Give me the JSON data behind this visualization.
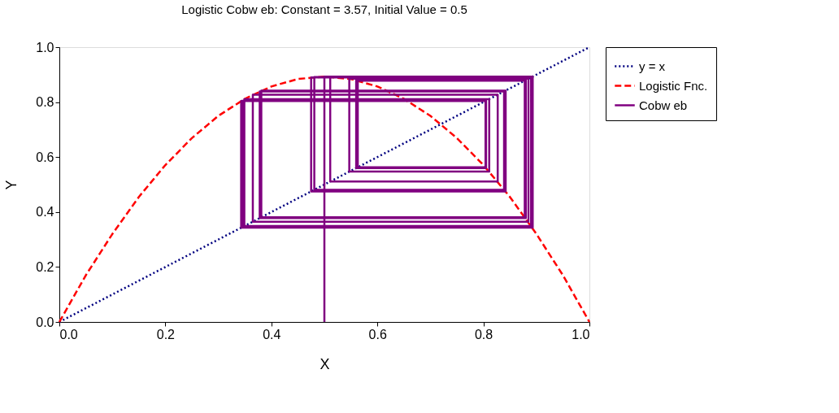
{
  "chart_data": {
    "type": "line",
    "title": "Logistic Cobw eb: Constant = 3.57, Initial Value = 0.5",
    "xlabel": "X",
    "ylabel": "Y",
    "xlim": [
      0,
      1
    ],
    "ylim": [
      0,
      1
    ],
    "xticks": [
      {
        "value": 0,
        "label": "0.0"
      },
      {
        "value": 0.2,
        "label": "0.2"
      },
      {
        "value": 0.4,
        "label": "0.4"
      },
      {
        "value": 0.6,
        "label": "0.6"
      },
      {
        "value": 0.8,
        "label": "0.8"
      },
      {
        "value": 1,
        "label": "1.0"
      }
    ],
    "yticks": [
      {
        "value": 0,
        "label": "0.0"
      },
      {
        "value": 0.2,
        "label": "0.2"
      },
      {
        "value": 0.4,
        "label": "0.4"
      },
      {
        "value": 0.6,
        "label": "0.6"
      },
      {
        "value": 0.8,
        "label": "0.8"
      },
      {
        "value": 1,
        "label": "1.0"
      }
    ],
    "grid": false,
    "legend": "right",
    "marker": "none",
    "series": [
      {
        "name": "y = x",
        "color": "#000080",
        "line_style": "dotted",
        "x": [
          0,
          1
        ],
        "values": [
          0,
          1
        ]
      },
      {
        "name": "Logistic Fnc.",
        "color": "#ff0000",
        "line_style": "dashed",
        "x": [
          0,
          0.05,
          0.1,
          0.15,
          0.2,
          0.25,
          0.3,
          0.35,
          0.4,
          0.45,
          0.5,
          0.55,
          0.6,
          0.65,
          0.7,
          0.75,
          0.8,
          0.85,
          0.9,
          0.95,
          1
        ],
        "values": [
          0,
          0.17,
          0.32,
          0.455,
          0.571,
          0.669,
          0.75,
          0.812,
          0.857,
          0.884,
          0.893,
          0.884,
          0.857,
          0.812,
          0.75,
          0.669,
          0.571,
          0.455,
          0.32,
          0.17,
          0
        ]
      },
      {
        "name": "Cobw eb",
        "color": "#800080",
        "line_style": "solid",
        "x": [
          0.5,
          0.5,
          0.893,
          0.893,
          0.343,
          0.343,
          0.804,
          0.804,
          0.563,
          0.563,
          0.878,
          0.878,
          0.381,
          0.381,
          0.842,
          0.842,
          0.475,
          0.475,
          0.89,
          0.89,
          0.349,
          0.349,
          0.811,
          0.811,
          0.547,
          0.547,
          0.885,
          0.885,
          0.365,
          0.365,
          0.827,
          0.827,
          0.511,
          0.511,
          0.892,
          0.892,
          0.344,
          0.344,
          0.805,
          0.805,
          0.56,
          0.56,
          0.88,
          0.88,
          0.378,
          0.378,
          0.839,
          0.839,
          0.481,
          0.481,
          0.891,
          0.891,
          0.346,
          0.346
        ],
        "values": [
          0,
          0.893,
          0.893,
          0.343,
          0.343,
          0.804,
          0.804,
          0.563,
          0.563,
          0.878,
          0.878,
          0.381,
          0.381,
          0.842,
          0.842,
          0.475,
          0.475,
          0.89,
          0.89,
          0.349,
          0.349,
          0.811,
          0.811,
          0.547,
          0.547,
          0.885,
          0.885,
          0.365,
          0.365,
          0.827,
          0.827,
          0.511,
          0.511,
          0.892,
          0.892,
          0.344,
          0.344,
          0.805,
          0.805,
          0.56,
          0.56,
          0.88,
          0.88,
          0.378,
          0.378,
          0.839,
          0.839,
          0.481,
          0.481,
          0.891,
          0.891,
          0.346,
          0.346,
          0.808
        ]
      }
    ]
  }
}
